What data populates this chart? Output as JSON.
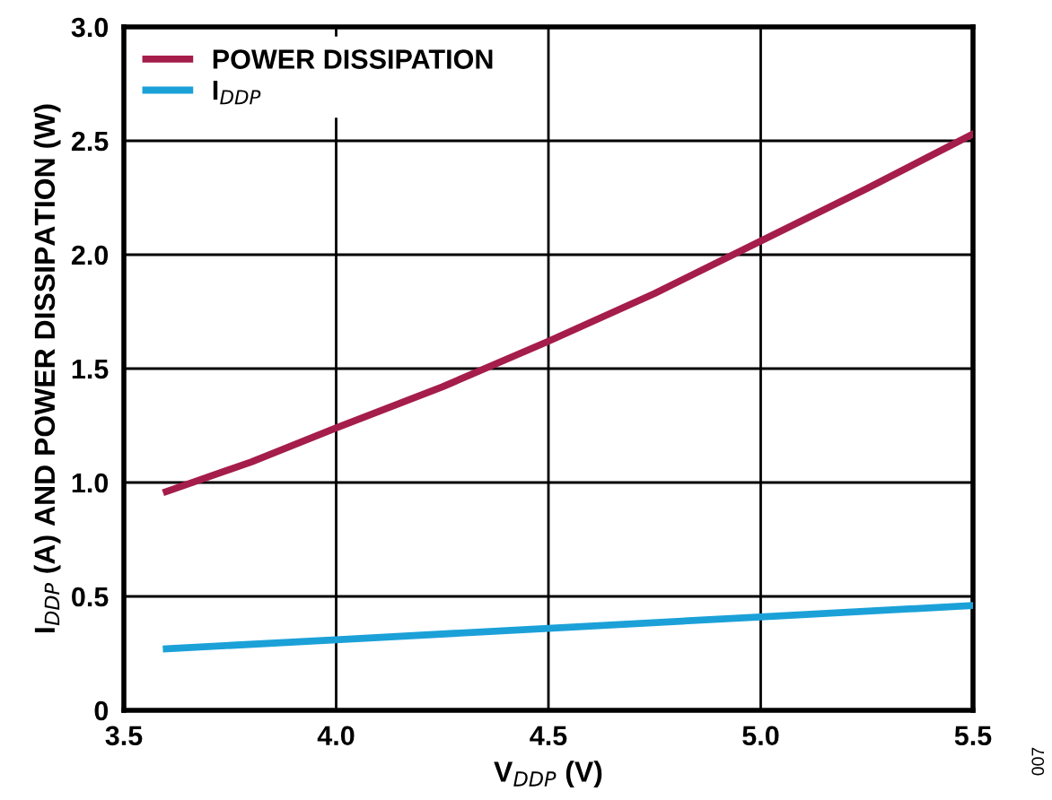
{
  "chart_data": {
    "type": "line",
    "xlabel": "V$_{DDP}$ (V)",
    "ylabel": "I$_{DDP}$ (A) AND POWER DISSIPATION (W)",
    "xlim": [
      3.5,
      5.5
    ],
    "ylim": [
      0,
      3.0
    ],
    "xticks": [
      {
        "value": 3.5,
        "label": "3.5"
      },
      {
        "value": 4.0,
        "label": "4.0"
      },
      {
        "value": 4.5,
        "label": "4.5"
      },
      {
        "value": 5.0,
        "label": "5.0"
      },
      {
        "value": 5.5,
        "label": "5.5"
      }
    ],
    "yticks": [
      0,
      {
        "value": 0.5,
        "label": "0.5"
      },
      {
        "value": 1.0,
        "label": "1.0"
      },
      {
        "value": 1.5,
        "label": "1.5"
      },
      {
        "value": 2.0,
        "label": "2.0"
      },
      {
        "value": 2.5,
        "label": "2.5"
      },
      {
        "value": 3.0,
        "label": "3.0"
      }
    ],
    "grid": true,
    "legend": "top left",
    "line_style": "solid",
    "marker": "none",
    "series": [
      {
        "name": "POWER DISSIPATION",
        "color": "#a51d4a",
        "x": [
          3.6,
          3.8,
          4.0,
          4.25,
          4.5,
          4.75,
          5.0,
          5.25,
          5.5
        ],
        "values": [
          0.96,
          1.09,
          1.24,
          1.42,
          1.62,
          1.83,
          2.06,
          2.29,
          2.53
        ]
      },
      {
        "name": "I$_{DDP}$",
        "color": "#1ba1d8",
        "x": [
          3.6,
          4.0,
          4.5,
          5.0,
          5.5
        ],
        "values": [
          0.27,
          0.31,
          0.36,
          0.41,
          0.46
        ]
      }
    ],
    "annotations": [
      "007"
    ]
  }
}
